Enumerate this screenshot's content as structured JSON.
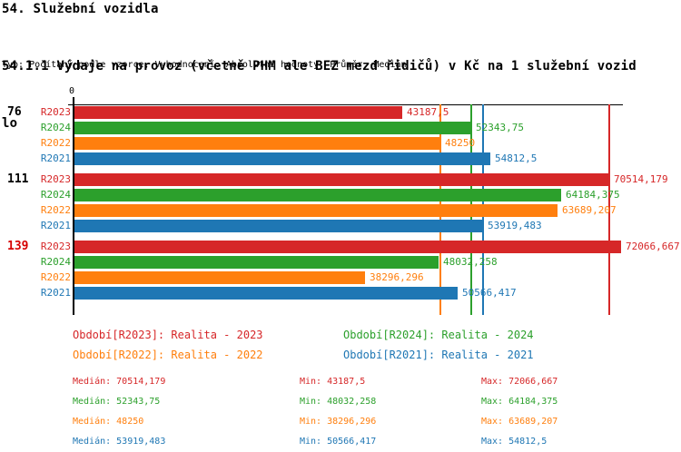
{
  "title": "54. Služební vozidla",
  "subtitle_line1": "54.1.1 Výdaje na provoz (včetně PHM ale BEZ mezd řidičů) v Kč na 1 služební vozid",
  "subtitle_line2": "lo",
  "meta": "Typ: Počítaný podle vzorce, Vyhodnocení: Absolutní hodnoty, Průměr: Medián",
  "stats_labels": {
    "median": "Medián",
    "min": "Min",
    "max": "Max"
  },
  "chart_data": {
    "type": "bar",
    "orientation": "horizontal",
    "title": "54.1.1 Výdaje na provoz (včetně PHM ale BEZ mezd řidičů) v Kč na 1 služební vozidlo",
    "value_axis": {
      "min": 0,
      "shown_tick": "0",
      "implied_max": 72066.667,
      "grid": false
    },
    "group_labels": [
      "76",
      "111",
      "139"
    ],
    "group_label_colors": [
      "#000000",
      "#000000",
      "#d60000"
    ],
    "series": [
      {
        "id": "R2023",
        "color": "#d62728",
        "legend_label": "Období[R2023]: Realita - 2023",
        "values": [
          43187.5,
          70514.179,
          72066.667
        ],
        "value_labels": [
          "43187,5",
          "70514,179",
          "72066,667"
        ],
        "median": 70514.179,
        "stats": {
          "median": "70514,179",
          "min": "43187,5",
          "max": "72066,667"
        }
      },
      {
        "id": "R2024",
        "color": "#2ca02c",
        "legend_label": "Období[R2024]: Realita - 2024",
        "values": [
          52343.75,
          64184.375,
          48032.258
        ],
        "value_labels": [
          "52343,75",
          "64184,375",
          "48032,258"
        ],
        "median": 52343.75,
        "stats": {
          "median": "52343,75",
          "min": "48032,258",
          "max": "64184,375"
        }
      },
      {
        "id": "R2022",
        "color": "#ff7f0e",
        "legend_label": "Období[R2022]: Realita - 2022",
        "values": [
          48250,
          63689.207,
          38296.296
        ],
        "value_labels": [
          "48250",
          "63689,207",
          "38296,296"
        ],
        "median": 48250,
        "stats": {
          "median": "48250",
          "min": "38296,296",
          "max": "63689,207"
        }
      },
      {
        "id": "R2021",
        "color": "#1f77b4",
        "legend_label": "Období[R2021]: Realita - 2021",
        "values": [
          54812.5,
          53919.483,
          50566.417
        ],
        "value_labels": [
          "54812,5",
          "53919,483",
          "50566,417"
        ],
        "median": 53919.483,
        "stats": {
          "median": "53919,483",
          "min": "50566,417",
          "max": "54812,5"
        }
      }
    ],
    "legend_position": "bottom"
  }
}
